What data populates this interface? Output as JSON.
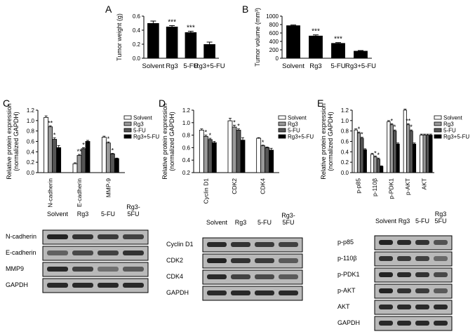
{
  "panels": {
    "A": "A",
    "B": "B",
    "C": "C",
    "D": "D",
    "E": "E"
  },
  "chart_data": [
    {
      "id": "A",
      "type": "bar",
      "ylabel": "Tumor weight (g)",
      "ylim": [
        0,
        0.6
      ],
      "yticks": [
        "0.0",
        "0.2",
        "0.4",
        "0.6"
      ],
      "categories": [
        "Solvent",
        "Rg3",
        "5-FU",
        "Rg3+5-FU"
      ],
      "values": [
        0.5,
        0.45,
        0.37,
        0.2
      ],
      "errors": [
        0.03,
        0.015,
        0.015,
        0.03
      ],
      "annotations": [
        "",
        "***",
        "***",
        ""
      ]
    },
    {
      "id": "B",
      "type": "bar",
      "ylabel": "Tumor volume (mm³)",
      "ylim": [
        0,
        1000
      ],
      "yticks": [
        "0",
        "200",
        "400",
        "600",
        "800",
        "1000"
      ],
      "categories": [
        "Solvent",
        "Rg3",
        "5-FU",
        "Rg3+5-FU"
      ],
      "values": [
        780,
        535,
        360,
        175
      ],
      "errors": [
        10,
        20,
        12,
        8
      ],
      "annotations": [
        "",
        "***",
        "***",
        ""
      ]
    },
    {
      "id": "C",
      "type": "bar",
      "ylabel": "Relative protein expression",
      "ylabel2": "(normalized GAPDH)",
      "ylim": [
        0,
        1.2
      ],
      "yticks": [
        "0.0",
        "0.2",
        "0.4",
        "0.6",
        "0.8",
        "1.0",
        "1.2"
      ],
      "categories": [
        "N-cadherin",
        "E-cadherin",
        "MMP-9"
      ],
      "series": [
        {
          "name": "Solvent",
          "values": [
            1.06,
            0.17,
            0.68
          ],
          "errors": [
            0.03,
            0.02,
            0.02
          ]
        },
        {
          "name": "Rg3",
          "values": [
            0.88,
            0.33,
            0.57
          ],
          "errors": [
            0.02,
            0.02,
            0.02
          ]
        },
        {
          "name": "5-FU",
          "values": [
            0.64,
            0.46,
            0.36
          ],
          "errors": [
            0.03,
            0.02,
            0.01
          ]
        },
        {
          "name": "Rg3+5-FU",
          "values": [
            0.48,
            0.6,
            0.27
          ],
          "errors": [
            0.04,
            0.02,
            0.01
          ]
        }
      ],
      "annotations": [
        [
          "",
          "**",
          "*",
          ""
        ],
        [
          "",
          "**",
          "*",
          ""
        ],
        [
          "",
          "*",
          "*",
          ""
        ]
      ]
    },
    {
      "id": "D",
      "type": "bar",
      "ylabel": "Relative protein expression",
      "ylabel2": "(normalized GAPDH)",
      "ylim": [
        0.2,
        1.2
      ],
      "yticks": [
        "0.2",
        "0.4",
        "0.6",
        "0.8",
        "1.0",
        "1.2"
      ],
      "categories": [
        "Cyclin D1",
        "CDK2",
        "CDK4"
      ],
      "series": [
        {
          "name": "Solvent",
          "values": [
            0.88,
            1.03,
            0.75
          ],
          "errors": [
            0.02,
            0.04,
            0.01
          ]
        },
        {
          "name": "Rg3",
          "values": [
            0.78,
            0.93,
            0.63
          ],
          "errors": [
            0.02,
            0.03,
            0.01
          ]
        },
        {
          "name": "5-FU",
          "values": [
            0.73,
            0.88,
            0.6
          ],
          "errors": [
            0.02,
            0.02,
            0.01
          ]
        },
        {
          "name": "Rg3+5-FU",
          "values": [
            0.68,
            0.72,
            0.56
          ],
          "errors": [
            0.02,
            0.04,
            0.03
          ]
        }
      ],
      "annotations": [
        [
          "",
          "*",
          "*",
          ""
        ],
        [
          "",
          "*",
          "*",
          ""
        ],
        [
          "",
          "*",
          "",
          ""
        ]
      ]
    },
    {
      "id": "E",
      "type": "bar",
      "ylabel": "Relative protein expression",
      "ylabel2": "(normalized GAPDH)",
      "ylim": [
        0,
        1.2
      ],
      "yticks": [
        "0.0",
        "0.2",
        "0.4",
        "0.6",
        "0.8",
        "1.0",
        "1.2"
      ],
      "categories": [
        "p-p85",
        "p-110β",
        "p-PDK1",
        "p-AKT",
        "AKT"
      ],
      "series": [
        {
          "name": "Solvent",
          "values": [
            0.82,
            0.35,
            0.98,
            1.2,
            0.72
          ],
          "errors": [
            0.02,
            0.02,
            0.02,
            0.02,
            0.02
          ]
        },
        {
          "name": "Rg3",
          "values": [
            0.76,
            0.3,
            0.92,
            0.92,
            0.72
          ],
          "errors": [
            0.02,
            0.02,
            0.02,
            0.02,
            0.02
          ]
        },
        {
          "name": "5-FU",
          "values": [
            0.66,
            0.26,
            0.8,
            0.8,
            0.72
          ],
          "errors": [
            0.02,
            0.02,
            0.02,
            0.02,
            0.02
          ]
        },
        {
          "name": "Rg3+5-FU",
          "values": [
            0.44,
            0.12,
            0.55,
            0.55,
            0.72
          ],
          "errors": [
            0.02,
            0.01,
            0.02,
            0.02,
            0.02
          ]
        }
      ],
      "annotations": [
        [
          "",
          "*",
          "*",
          ""
        ],
        [
          "",
          "*",
          "*",
          ""
        ],
        [
          "",
          "*",
          "*",
          ""
        ],
        [
          "",
          "**",
          "*",
          ""
        ],
        [
          "",
          "",
          "",
          ""
        ]
      ]
    }
  ],
  "legend": [
    "Solvent",
    "Rg3",
    "5-FU",
    "Rg3+5-FU"
  ],
  "blots": {
    "C": {
      "columns": [
        "Solvent",
        "Rg3",
        "5-FU",
        "Rg3-\n5FU"
      ],
      "rows": [
        "N-cadherin",
        "E-cadherin",
        "MMP9",
        "GAPDH"
      ]
    },
    "D": {
      "columns": [
        "Solvent",
        "Rg3",
        "5-FU",
        "Rg3-\n5FU"
      ],
      "rows": [
        "Cyclin D1",
        "CDK2",
        "CDK4",
        "GAPDH"
      ]
    },
    "E": {
      "columns": [
        "Solvent",
        "Rg3",
        "5-FU",
        "Rg3\n5FU"
      ],
      "rows": [
        "p-p85",
        "p-110β",
        "p-PDK1",
        "p-AKT",
        "AKT",
        "GAPDH"
      ]
    }
  }
}
